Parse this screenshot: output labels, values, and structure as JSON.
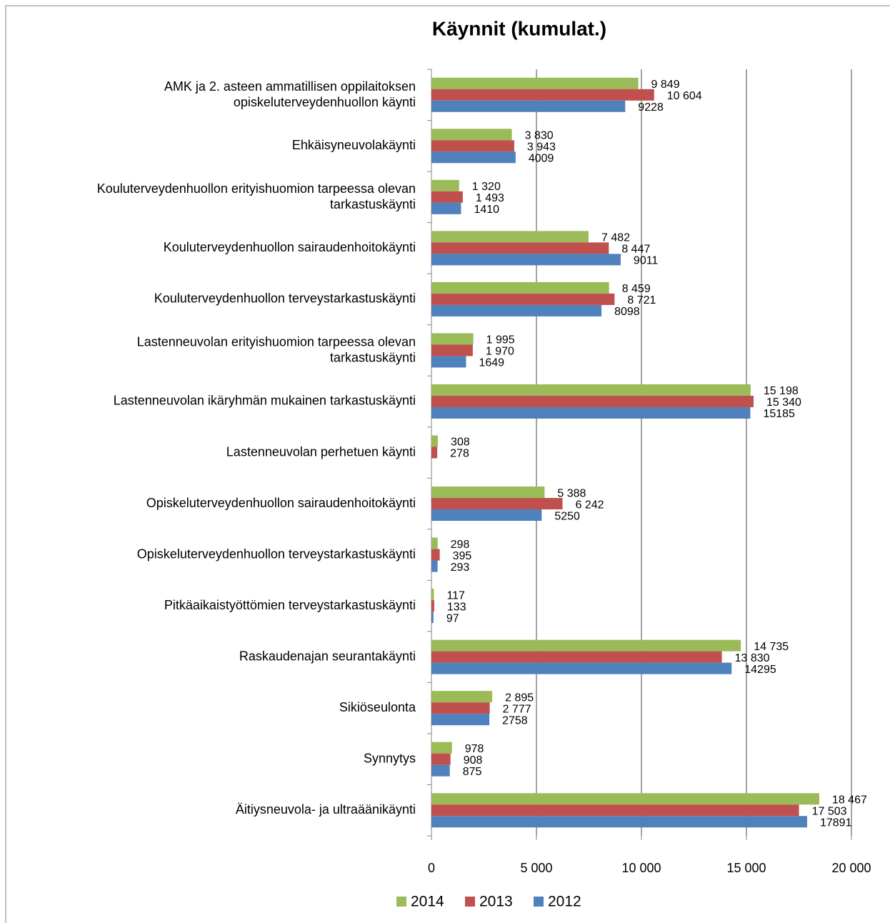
{
  "chart_data": {
    "type": "bar",
    "orientation": "horizontal",
    "title": "Käynnit  (kumulat.)",
    "categories": [
      "AMK ja 2. asteen ammatillisen oppilaitoksen\nopiskeluterveydenhuollon käynti",
      "Ehkäisyneuvolakäynti",
      "Kouluterveydenhuollon erityishuomion tarpeessa olevan\ntarkastuskäynti",
      "Kouluterveydenhuollon sairaudenhoitokäynti",
      "Kouluterveydenhuollon terveystarkastuskäynti",
      "Lastenneuvolan erityishuomion tarpeessa olevan\ntarkastuskäynti",
      "Lastenneuvolan ikäryhmän mukainen tarkastuskäynti",
      "Lastenneuvolan perhetuen käynti",
      "Opiskeluterveydenhuollon sairaudenhoitokäynti",
      "Opiskeluterveydenhuollon terveystarkastuskäynti",
      "Pitkäaikaistyöttömien terveystarkastuskäynti",
      "Raskaudenajan seurantakäynti",
      "Sikiöseulonta",
      "Synnytys",
      "Äitiysneuvola- ja ultraäänikäynti"
    ],
    "series": [
      {
        "name": "2014",
        "color": "#9bbb59",
        "values": [
          9849,
          3830,
          1320,
          7482,
          8459,
          1995,
          15198,
          308,
          5388,
          298,
          117,
          14735,
          2895,
          978,
          18467
        ],
        "value_labels": [
          "9 849",
          "3 830",
          "1 320",
          "7 482",
          "8 459",
          "1 995",
          "15 198",
          "308",
          "5 388",
          "298",
          "117",
          "14 735",
          "2 895",
          "978",
          "18 467"
        ]
      },
      {
        "name": "2013",
        "color": "#c0504d",
        "values": [
          10604,
          3943,
          1493,
          8447,
          8721,
          1970,
          15340,
          278,
          6242,
          395,
          133,
          13830,
          2777,
          908,
          17503
        ],
        "value_labels": [
          "10 604",
          "3 943",
          "1 493",
          "8 447",
          "8 721",
          "1 970",
          "15 340",
          "278",
          "6 242",
          "395",
          "133",
          "13 830",
          "2 777",
          "908",
          "17 503"
        ]
      },
      {
        "name": "2012",
        "color": "#4f81bd",
        "values": [
          9228,
          4009,
          1410,
          9011,
          8098,
          1649,
          15185,
          null,
          5250,
          293,
          97,
          14295,
          2758,
          875,
          17891
        ]
      }
    ],
    "xlim": [
      0,
      20000
    ],
    "xticks": [
      0,
      {
        "value": 5000,
        "label": "5 000"
      },
      {
        "value": 10000,
        "label": "10 000"
      },
      {
        "value": 15000,
        "label": "15 000"
      },
      {
        "value": 20000,
        "label": "20 000"
      }
    ],
    "grid": true,
    "legend": "bottom"
  }
}
